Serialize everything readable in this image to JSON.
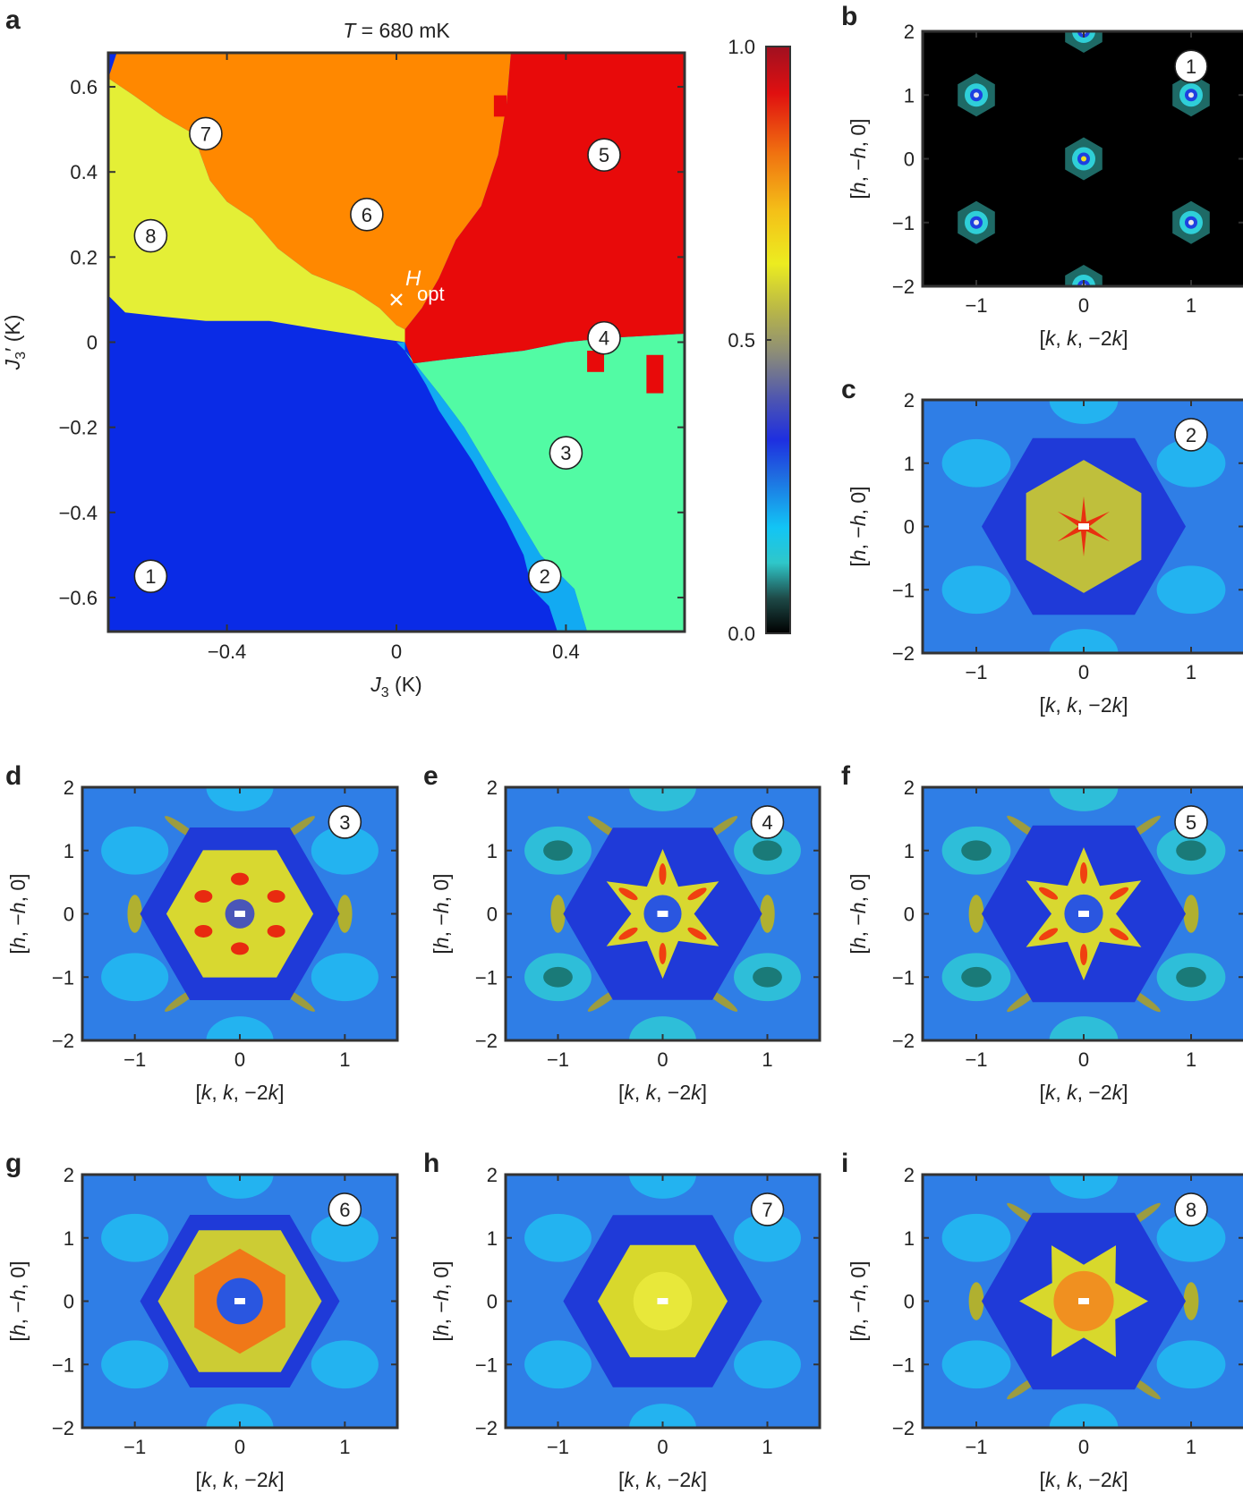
{
  "panel_letters": [
    "a",
    "b",
    "c",
    "d",
    "e",
    "f",
    "g",
    "h",
    "i"
  ],
  "colors": {
    "blue": "#0a2be6",
    "lightblue": "#12aaf2",
    "mint": "#52fba4",
    "red": "#e80a0a",
    "orange": "#ff8800",
    "yellow": "#e4ef36",
    "frame": "#333333",
    "background_map": "#2f7ee6"
  },
  "chart_data": [
    {
      "type": "heatmap",
      "panel": "a",
      "title": "T = 680 mK",
      "title_parts": [
        "T",
        " = 680 mK"
      ],
      "xlabel": "J3 (K)",
      "xlabel_parts": [
        "J",
        "3",
        " (K)"
      ],
      "ylabel": "J3' (K)",
      "ylabel_parts": [
        "J",
        "3",
        "′ (K)"
      ],
      "xlim": [
        -0.68,
        0.68
      ],
      "ylim": [
        -0.68,
        0.68
      ],
      "x_ticks": [
        -0.4,
        0,
        0.4
      ],
      "x_tick_labels": [
        "−0.4",
        "0",
        "0.4"
      ],
      "y_ticks": [
        -0.6,
        -0.4,
        -0.2,
        0,
        0.2,
        0.4,
        0.6
      ],
      "y_tick_labels": [
        "−0.6",
        "−0.4",
        "−0.2",
        "0",
        "0.2",
        "0.4",
        "0.6"
      ],
      "grid": false,
      "region_labels": [
        {
          "id": "1",
          "x": -0.58,
          "y": -0.55
        },
        {
          "id": "2",
          "x": 0.35,
          "y": -0.55
        },
        {
          "id": "3",
          "x": 0.4,
          "y": -0.26
        },
        {
          "id": "4",
          "x": 0.49,
          "y": 0.01
        },
        {
          "id": "5",
          "x": 0.49,
          "y": 0.44
        },
        {
          "id": "6",
          "x": -0.07,
          "y": 0.3
        },
        {
          "id": "7",
          "x": -0.45,
          "y": 0.49
        },
        {
          "id": "8",
          "x": -0.58,
          "y": 0.25
        }
      ],
      "marker": {
        "label": "H",
        "sub": "opt",
        "x": 0.0,
        "y": 0.1
      },
      "colorbar": {
        "ticks": [
          0.0,
          0.5,
          1.0
        ],
        "tick_labels": [
          "0.0",
          "0.5",
          "1.0"
        ],
        "stops": [
          [
            0.0,
            "#000000"
          ],
          [
            0.06,
            "#1e4a48"
          ],
          [
            0.12,
            "#2fc7c9"
          ],
          [
            0.18,
            "#12c5f5"
          ],
          [
            0.27,
            "#1f6ae0"
          ],
          [
            0.33,
            "#1e2fe0"
          ],
          [
            0.4,
            "#4e56b0"
          ],
          [
            0.48,
            "#8e8e76"
          ],
          [
            0.55,
            "#b8b648"
          ],
          [
            0.63,
            "#ecec20"
          ],
          [
            0.72,
            "#f4c018"
          ],
          [
            0.82,
            "#f07010"
          ],
          [
            0.92,
            "#e01010"
          ],
          [
            1.0,
            "#a01020"
          ]
        ]
      }
    },
    {
      "type": "heatmap",
      "panel": "b",
      "pattern": 1,
      "badge": "1",
      "x_tick_labels": [
        "−1",
        "0",
        "1"
      ],
      "y_tick_labels": [
        "−2",
        "−1",
        "0",
        "1",
        "2"
      ],
      "xlabel_parts": [
        "[",
        "k",
        ", ",
        "k",
        ", −2",
        "k",
        "]"
      ],
      "ylabel_parts": [
        "[",
        "h",
        ", −",
        "h",
        ", 0]"
      ],
      "xlim": [
        -1.5,
        1.5
      ],
      "ylim": [
        -2,
        2
      ]
    },
    {
      "type": "heatmap",
      "panel": "c",
      "pattern": 2,
      "badge": "2",
      "x_tick_labels": [
        "−1",
        "0",
        "1"
      ],
      "y_tick_labels": [
        "−2",
        "−1",
        "0",
        "1",
        "2"
      ],
      "xlabel_parts": [
        "[",
        "k",
        ", ",
        "k",
        ", −2",
        "k",
        "]"
      ],
      "ylabel_parts": [
        "[",
        "h",
        ", −",
        "h",
        ", 0]"
      ],
      "xlim": [
        -1.5,
        1.5
      ],
      "ylim": [
        -2,
        2
      ]
    },
    {
      "type": "heatmap",
      "panel": "d",
      "pattern": 3,
      "badge": "3",
      "x_tick_labels": [
        "−1",
        "0",
        "1"
      ],
      "y_tick_labels": [
        "−2",
        "−1",
        "0",
        "1",
        "2"
      ],
      "xlabel_parts": [
        "[",
        "k",
        ", ",
        "k",
        ", −2",
        "k",
        "]"
      ],
      "ylabel_parts": [
        "[",
        "h",
        ", −",
        "h",
        ", 0]"
      ],
      "xlim": [
        -1.5,
        1.5
      ],
      "ylim": [
        -2,
        2
      ]
    },
    {
      "type": "heatmap",
      "panel": "e",
      "pattern": 4,
      "badge": "4",
      "x_tick_labels": [
        "−1",
        "0",
        "1"
      ],
      "y_tick_labels": [
        "−2",
        "−1",
        "0",
        "1",
        "2"
      ],
      "xlabel_parts": [
        "[",
        "k",
        ", ",
        "k",
        ", −2",
        "k",
        "]"
      ],
      "ylabel_parts": [
        "[",
        "h",
        ", −",
        "h",
        ", 0]"
      ],
      "xlim": [
        -1.5,
        1.5
      ],
      "ylim": [
        -2,
        2
      ]
    },
    {
      "type": "heatmap",
      "panel": "f",
      "pattern": 5,
      "badge": "5",
      "x_tick_labels": [
        "−1",
        "0",
        "1"
      ],
      "y_tick_labels": [
        "−2",
        "−1",
        "0",
        "1",
        "2"
      ],
      "xlabel_parts": [
        "[",
        "k",
        ", ",
        "k",
        ", −2",
        "k",
        "]"
      ],
      "ylabel_parts": [
        "[",
        "h",
        ", −",
        "h",
        ", 0]"
      ],
      "xlim": [
        -1.5,
        1.5
      ],
      "ylim": [
        -2,
        2
      ]
    },
    {
      "type": "heatmap",
      "panel": "g",
      "pattern": 6,
      "badge": "6",
      "x_tick_labels": [
        "−1",
        "0",
        "1"
      ],
      "y_tick_labels": [
        "−2",
        "−1",
        "0",
        "1",
        "2"
      ],
      "xlabel_parts": [
        "[",
        "k",
        ", ",
        "k",
        ", −2",
        "k",
        "]"
      ],
      "ylabel_parts": [
        "[",
        "h",
        ", −",
        "h",
        ", 0]"
      ],
      "xlim": [
        -1.5,
        1.5
      ],
      "ylim": [
        -2,
        2
      ]
    },
    {
      "type": "heatmap",
      "panel": "h",
      "pattern": 7,
      "badge": "7",
      "x_tick_labels": [
        "−1",
        "0",
        "1"
      ],
      "y_tick_labels": [
        "−2",
        "−1",
        "0",
        "1",
        "2"
      ],
      "xlabel_parts": [
        "[",
        "k",
        ", ",
        "k",
        ", −2",
        "k",
        "]"
      ],
      "ylabel_parts": [
        "[",
        "h",
        ", −",
        "h",
        ", 0]"
      ],
      "xlim": [
        -1.5,
        1.5
      ],
      "ylim": [
        -2,
        2
      ]
    },
    {
      "type": "heatmap",
      "panel": "i",
      "pattern": 8,
      "badge": "8",
      "x_tick_labels": [
        "−1",
        "0",
        "1"
      ],
      "y_tick_labels": [
        "−2",
        "−1",
        "0",
        "1",
        "2"
      ],
      "xlabel_parts": [
        "[",
        "k",
        ", ",
        "k",
        ", −2",
        "k",
        "]"
      ],
      "ylabel_parts": [
        "[",
        "h",
        ", −",
        "h",
        ", 0]"
      ],
      "xlim": [
        -1.5,
        1.5
      ],
      "ylim": [
        -2,
        2
      ]
    }
  ]
}
